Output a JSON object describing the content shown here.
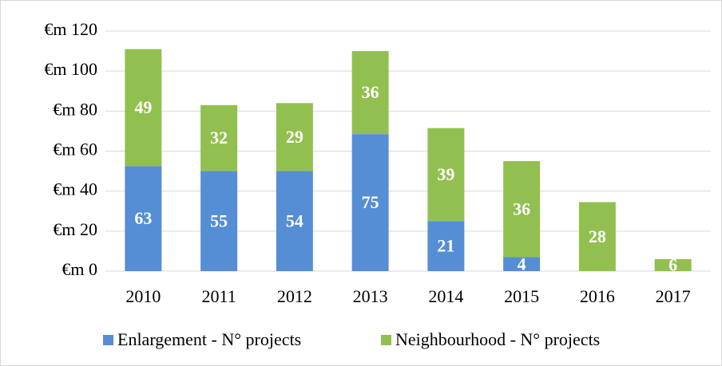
{
  "chart_data": {
    "type": "stacked_bar",
    "categories": [
      "2010",
      "2011",
      "2012",
      "2013",
      "2014",
      "2015",
      "2016",
      "2017"
    ],
    "series": [
      {
        "name": "Enlargement - N° projects",
        "color": "#558ed5",
        "values": [
          52.5,
          50,
          50,
          68.5,
          25,
          7,
          0,
          0
        ],
        "projects": [
          63,
          55,
          54,
          75,
          21,
          4,
          null,
          null
        ]
      },
      {
        "name": "Neighbourhood - N° projects",
        "color": "#92c050",
        "values": [
          58.5,
          33,
          34,
          41.5,
          46.5,
          48,
          34.5,
          6
        ],
        "projects": [
          49,
          32,
          29,
          36,
          39,
          36,
          28,
          6
        ]
      }
    ],
    "ylim": [
      0,
      120
    ],
    "yticks": [
      {
        "value": 0,
        "label": "€m 0"
      },
      {
        "value": 20,
        "label": "€m 20"
      },
      {
        "value": 40,
        "label": "€m 40"
      },
      {
        "value": 60,
        "label": "€m 60"
      },
      {
        "value": 80,
        "label": "€m 80"
      },
      {
        "value": 100,
        "label": "€m 100"
      },
      {
        "value": 120,
        "label": "€m 120"
      }
    ],
    "grid": true,
    "legend": "bottom"
  }
}
